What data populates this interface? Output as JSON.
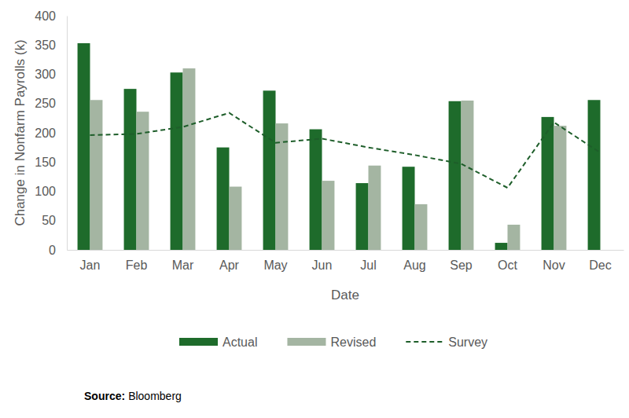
{
  "chart_data": {
    "type": "bar",
    "x_label": "Date",
    "y_label": "Change in Nonfarm Payrolls (k)",
    "categories": [
      "Jan",
      "Feb",
      "Mar",
      "Apr",
      "May",
      "Jun",
      "Jul",
      "Aug",
      "Sep",
      "Oct",
      "Nov",
      "Dec"
    ],
    "series": [
      {
        "name": "Actual",
        "type": "bar",
        "color": "#1e6b2b",
        "values": [
          353,
          275,
          303,
          175,
          272,
          206,
          114,
          142,
          254,
          12,
          227,
          256
        ]
      },
      {
        "name": "Revised",
        "type": "bar",
        "color": "#a4b5a2",
        "values": [
          256,
          236,
          310,
          108,
          216,
          118,
          144,
          78,
          255,
          43,
          212,
          null
        ]
      },
      {
        "name": "Survey",
        "type": "line",
        "color": "#1e5e2a",
        "line_style": "dashed",
        "values": [
          196,
          198,
          210,
          234,
          183,
          190,
          175,
          162,
          147,
          106,
          218,
          166
        ]
      }
    ],
    "ylim": [
      0,
      400
    ],
    "yticks": [
      0,
      50,
      100,
      150,
      200,
      250,
      300,
      350,
      400
    ],
    "grid": false,
    "legend": "bottom",
    "annotations": [
      "Source:",
      "Bloomberg"
    ]
  }
}
